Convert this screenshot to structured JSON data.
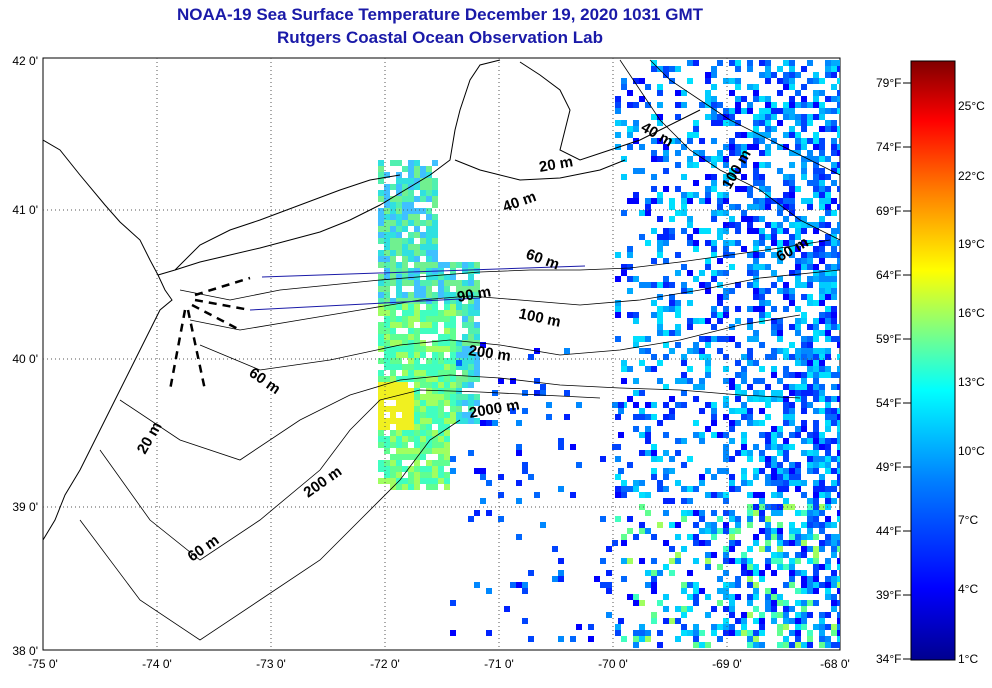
{
  "title": {
    "line1": "NOAA-19 Sea Surface Temperature December 19, 2020 1031 GMT",
    "line2": "Rutgers Coastal Ocean Observation Lab"
  },
  "map": {
    "lon_labels": [
      "-75 0'",
      "-74 0'",
      "-73 0'",
      "-72 0'",
      "-71 0'",
      "-70 0'",
      "-69 0'",
      "-68 0'"
    ],
    "lat_labels": [
      "42 0'",
      "41 0'",
      "40 0'",
      "39 0'",
      "38 0'"
    ],
    "contour_labels": [
      "20 m",
      "40 m",
      "60 m",
      "90 m",
      "100 m",
      "200 m",
      "2000 m",
      "20 m",
      "60 m",
      "200 m",
      "60 m",
      "40 m",
      "100 m",
      "60 m"
    ]
  },
  "colorbar": {
    "fahrenheit": [
      "79°F",
      "74°F",
      "69°F",
      "64°F",
      "59°F",
      "54°F",
      "49°F",
      "44°F",
      "39°F",
      "34°F"
    ],
    "celsius": [
      "25°C",
      "22°C",
      "19°C",
      "16°C",
      "13°C",
      "10°C",
      "7°C",
      "4°C",
      "1°C"
    ],
    "colors": [
      "#00008f",
      "#0000ff",
      "#0080ff",
      "#00ffff",
      "#80ff80",
      "#ffff00",
      "#ff8000",
      "#ff0000",
      "#800000"
    ]
  }
}
